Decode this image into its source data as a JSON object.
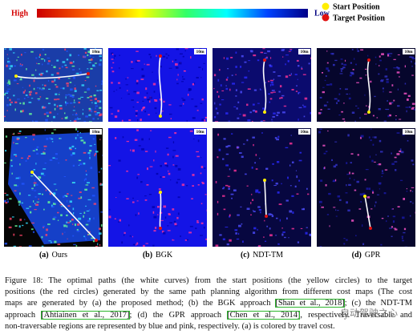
{
  "colorbar": {
    "high": "High",
    "low": "Low"
  },
  "legend": {
    "start": "Start Position",
    "target": "Target Position"
  },
  "panels": [
    {
      "tag": "(a)",
      "name": "Ours",
      "scales": [
        "10m",
        "10m"
      ]
    },
    {
      "tag": "(b)",
      "name": "BGK",
      "scales": [
        "10m",
        "10m"
      ]
    },
    {
      "tag": "(c)",
      "name": "NDT-TM",
      "scales": [
        "10m",
        "10m"
      ]
    },
    {
      "tag": "(d)",
      "name": "GPR",
      "scales": [
        "10m",
        "10m"
      ]
    }
  ],
  "caption": {
    "lines": [
      [
        "Figure 18: The optimal paths (the white curves) from the start positions (the yellow circles) to the target"
      ],
      [
        "positions (the red circles) generated by the same path planning algorithm from different cost maps (The cost"
      ],
      [
        "maps are generated by (a) the proposed method; (b) the BGK approach ",
        "[Shan et al., 2018]",
        "; (c) the NDT-TM"
      ],
      [
        "approach ",
        "[Ahtiainen et al., 2017]",
        "; (d) the GPR approach ",
        "[Chen et al., 2014]",
        ", respectively. Traversable and"
      ],
      [
        "non-traversable regions are represented by blue and pink, respectively. (a) is colored by travel cost."
      ]
    ]
  },
  "watermark": "自动驾驶之心"
}
